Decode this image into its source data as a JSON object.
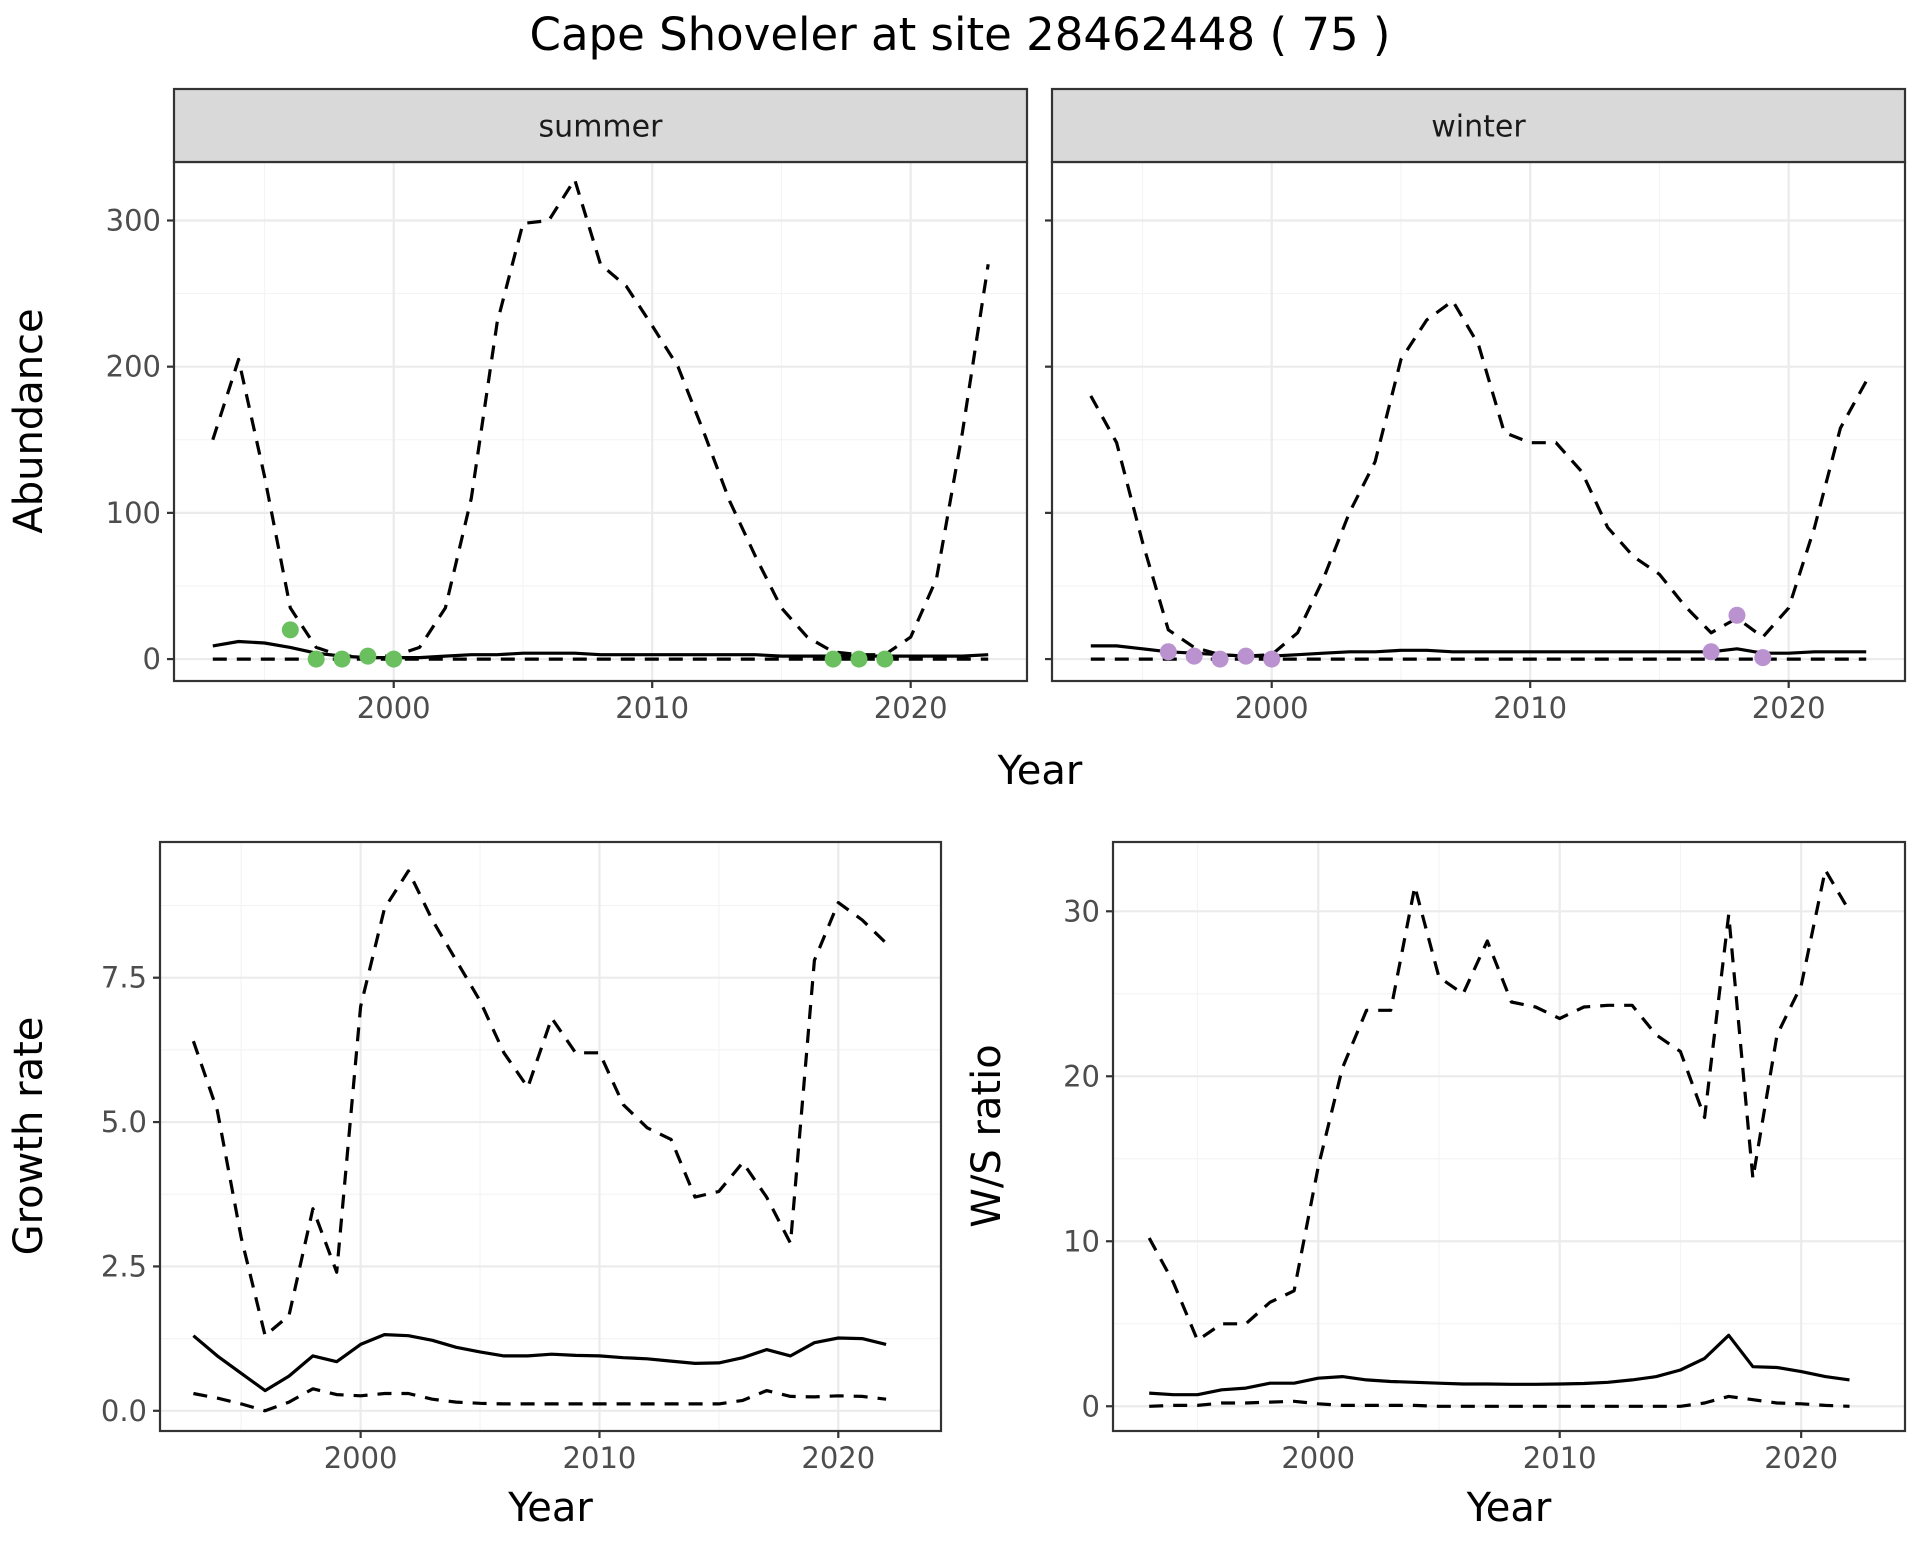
{
  "title": "Cape Shoveler at site 28462448 ( 75 )",
  "chart_data": [
    {
      "type": "line",
      "panel": "summer",
      "xlabel": "Year",
      "ylabel": "Abundance",
      "xlim": [
        1991.5,
        2024.5
      ],
      "ylim": [
        -15,
        340
      ],
      "xticks": [
        2000,
        2010,
        2020
      ],
      "yticks": [
        0,
        100,
        200,
        300
      ],
      "grid": true,
      "x": [
        1993,
        1994,
        1995,
        1996,
        1997,
        1998,
        1999,
        2000,
        2001,
        2002,
        2003,
        2004,
        2005,
        2006,
        2007,
        2008,
        2009,
        2010,
        2011,
        2012,
        2013,
        2014,
        2015,
        2016,
        2017,
        2018,
        2019,
        2020,
        2021,
        2022,
        2023
      ],
      "series": [
        {
          "style": "dashed",
          "values": [
            150,
            205,
            125,
            35,
            8,
            2,
            2,
            2,
            8,
            35,
            110,
            230,
            298,
            300,
            328,
            270,
            255,
            228,
            200,
            155,
            108,
            70,
            35,
            15,
            5,
            3,
            3,
            15,
            55,
            155,
            270
          ]
        },
        {
          "style": "solid",
          "values": [
            9,
            12,
            11,
            8,
            4,
            2,
            1,
            1,
            1,
            2,
            3,
            3,
            4,
            4,
            4,
            3,
            3,
            3,
            3,
            3,
            3,
            3,
            2,
            2,
            2,
            2,
            2,
            2,
            2,
            2,
            3
          ]
        },
        {
          "style": "dashed",
          "values": [
            0,
            0,
            0,
            0,
            0,
            0,
            0,
            0,
            0,
            0,
            0,
            0,
            0,
            0,
            0,
            0,
            0,
            0,
            0,
            0,
            0,
            0,
            0,
            0,
            0,
            0,
            0,
            0,
            0,
            0,
            0
          ]
        }
      ],
      "observations": {
        "color": "#6abf5e",
        "x": [
          1996,
          1997,
          1998,
          1999,
          2000,
          2017,
          2018,
          2019
        ],
        "y": [
          20,
          0,
          0,
          2,
          0,
          0,
          0,
          0
        ]
      }
    },
    {
      "type": "line",
      "panel": "winter",
      "xlabel": "Year",
      "ylabel": "Abundance",
      "xlim": [
        1991.5,
        2024.5
      ],
      "ylim": [
        -15,
        340
      ],
      "xticks": [
        2000,
        2010,
        2020
      ],
      "yticks": [
        0,
        100,
        200,
        300
      ],
      "grid": true,
      "x": [
        1993,
        1994,
        1995,
        1996,
        1997,
        1998,
        1999,
        2000,
        2001,
        2002,
        2003,
        2004,
        2005,
        2006,
        2007,
        2008,
        2009,
        2010,
        2011,
        2012,
        2013,
        2014,
        2015,
        2016,
        2017,
        2018,
        2019,
        2020,
        2021,
        2022,
        2023
      ],
      "series": [
        {
          "style": "dashed",
          "values": [
            180,
            148,
            80,
            20,
            8,
            3,
            2,
            3,
            18,
            55,
            100,
            135,
            205,
            232,
            245,
            215,
            155,
            148,
            148,
            128,
            90,
            70,
            58,
            36,
            18,
            28,
            15,
            35,
            90,
            158,
            190
          ]
        },
        {
          "style": "solid",
          "values": [
            9,
            9,
            7,
            5,
            4,
            3,
            2,
            2,
            3,
            4,
            5,
            5,
            6,
            6,
            5,
            5,
            5,
            5,
            5,
            5,
            5,
            5,
            5,
            5,
            5,
            7,
            4,
            4,
            5,
            5,
            5
          ]
        },
        {
          "style": "dashed",
          "values": [
            0,
            0,
            0,
            0,
            0,
            0,
            0,
            0,
            0,
            0,
            0,
            0,
            0,
            0,
            0,
            0,
            0,
            0,
            0,
            0,
            0,
            0,
            0,
            0,
            0,
            0,
            0,
            0,
            0,
            0,
            0
          ]
        }
      ],
      "observations": {
        "color": "#b992cf",
        "x": [
          1996,
          1997,
          1998,
          1999,
          2000,
          2017,
          2018,
          2019
        ],
        "y": [
          5,
          2,
          0,
          2,
          0,
          5,
          30,
          1
        ]
      }
    },
    {
      "type": "line",
      "xlabel": "Year",
      "ylabel": "Growth rate",
      "xlim": [
        1991.6,
        2024.3
      ],
      "ylim": [
        -0.35,
        9.85
      ],
      "xticks": [
        2000,
        2010,
        2020
      ],
      "yticks": [
        0.0,
        2.5,
        5.0,
        7.5
      ],
      "yticklabels": [
        "0.0",
        "2.5",
        "5.0",
        "7.5"
      ],
      "grid": true,
      "x": [
        1993,
        1994,
        1995,
        1996,
        1997,
        1998,
        1999,
        2000,
        2001,
        2002,
        2003,
        2004,
        2005,
        2006,
        2007,
        2008,
        2009,
        2010,
        2011,
        2012,
        2013,
        2014,
        2015,
        2016,
        2017,
        2018,
        2019,
        2020,
        2021,
        2022
      ],
      "series": [
        {
          "style": "dashed",
          "values": [
            6.4,
            5.2,
            3.0,
            1.3,
            1.65,
            3.5,
            2.4,
            7.0,
            8.7,
            9.35,
            8.5,
            7.8,
            7.1,
            6.2,
            5.6,
            6.8,
            6.2,
            6.2,
            5.3,
            4.9,
            4.7,
            3.7,
            3.8,
            4.3,
            3.7,
            2.9,
            7.8,
            8.8,
            8.5,
            8.1
          ]
        },
        {
          "style": "solid",
          "values": [
            1.3,
            0.95,
            0.65,
            0.35,
            0.6,
            0.95,
            0.85,
            1.15,
            1.32,
            1.3,
            1.22,
            1.1,
            1.02,
            0.95,
            0.95,
            0.98,
            0.96,
            0.95,
            0.92,
            0.9,
            0.86,
            0.82,
            0.83,
            0.92,
            1.06,
            0.95,
            1.18,
            1.26,
            1.25,
            1.15
          ]
        },
        {
          "style": "dashed",
          "values": [
            0.3,
            0.22,
            0.12,
            0.0,
            0.15,
            0.38,
            0.28,
            0.26,
            0.3,
            0.3,
            0.2,
            0.15,
            0.13,
            0.12,
            0.12,
            0.12,
            0.12,
            0.12,
            0.12,
            0.12,
            0.12,
            0.12,
            0.12,
            0.18,
            0.35,
            0.25,
            0.24,
            0.26,
            0.25,
            0.2
          ]
        }
      ]
    },
    {
      "type": "line",
      "xlabel": "Year",
      "ylabel": "W/S ratio",
      "xlim": [
        1991.5,
        2024.3
      ],
      "ylim": [
        -1.5,
        34.2
      ],
      "xticks": [
        2000,
        2010,
        2020
      ],
      "yticks": [
        0,
        10,
        20,
        30
      ],
      "grid": true,
      "x": [
        1993,
        1994,
        1995,
        1996,
        1997,
        1998,
        1999,
        2000,
        2001,
        2002,
        2003,
        2004,
        2005,
        2006,
        2007,
        2008,
        2009,
        2010,
        2011,
        2012,
        2013,
        2014,
        2015,
        2016,
        2017,
        2018,
        2019,
        2020,
        2021,
        2022
      ],
      "series": [
        {
          "style": "dashed",
          "values": [
            10.2,
            7.5,
            4.0,
            5.0,
            5.0,
            6.3,
            7.0,
            14.5,
            20.5,
            24.0,
            24.0,
            31.5,
            26.0,
            25.0,
            28.2,
            24.5,
            24.2,
            23.5,
            24.2,
            24.3,
            24.3,
            22.5,
            21.5,
            17.5,
            29.8,
            13.8,
            22.5,
            25.5,
            32.5,
            30.0
          ]
        },
        {
          "style": "solid",
          "values": [
            0.8,
            0.7,
            0.7,
            1.0,
            1.1,
            1.4,
            1.4,
            1.7,
            1.8,
            1.6,
            1.5,
            1.45,
            1.4,
            1.35,
            1.35,
            1.33,
            1.33,
            1.35,
            1.38,
            1.45,
            1.6,
            1.8,
            2.2,
            2.9,
            4.3,
            2.4,
            2.35,
            2.1,
            1.8,
            1.6
          ]
        },
        {
          "style": "dashed",
          "values": [
            0.0,
            0.05,
            0.05,
            0.2,
            0.2,
            0.25,
            0.3,
            0.15,
            0.05,
            0.05,
            0.05,
            0.05,
            0.0,
            0.0,
            0.0,
            0.0,
            0.0,
            0.0,
            0.0,
            0.0,
            0.0,
            0.0,
            0.0,
            0.2,
            0.6,
            0.4,
            0.2,
            0.15,
            0.05,
            0.0
          ]
        }
      ]
    }
  ]
}
